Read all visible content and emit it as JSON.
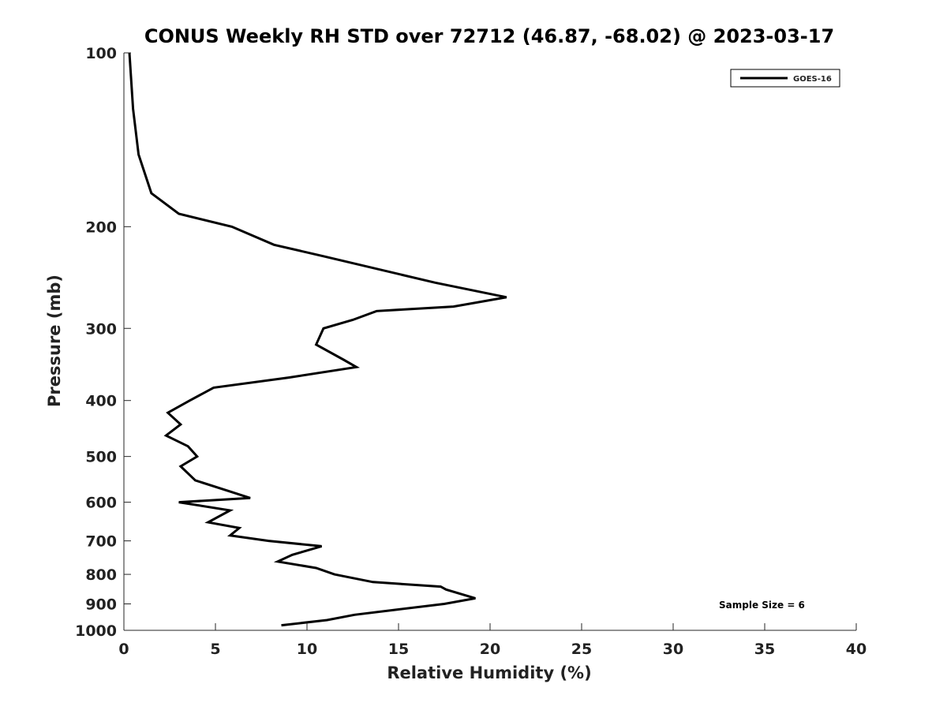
{
  "chart_data": {
    "type": "line",
    "title": "CONUS Weekly RH STD over 72712 (46.87, -68.02) @ 2023-03-17",
    "xlabel": "Relative Humidity (%)",
    "ylabel": "Pressure (mb)",
    "xlim": [
      0,
      40
    ],
    "ylim": [
      100,
      1000
    ],
    "y_scale": "log",
    "y_reversed": true,
    "x_ticks": [
      "0",
      "5",
      "10",
      "15",
      "20",
      "25",
      "30",
      "35",
      "40"
    ],
    "y_ticks": [
      "100",
      "200",
      "300",
      "400",
      "500",
      "600",
      "700",
      "800",
      "900",
      "1000"
    ],
    "grid": false,
    "legend_position": "top-right",
    "annotation": "Sample Size = 6",
    "series": [
      {
        "name": "GOES-16",
        "color": "#000000",
        "points": [
          [
            0.3,
            100
          ],
          [
            0.5,
            125
          ],
          [
            0.8,
            150
          ],
          [
            1.5,
            175
          ],
          [
            3.0,
            190
          ],
          [
            5.9,
            200
          ],
          [
            8.2,
            215
          ],
          [
            10.9,
            225
          ],
          [
            17.0,
            250
          ],
          [
            20.9,
            265
          ],
          [
            18.0,
            275
          ],
          [
            13.8,
            280
          ],
          [
            12.5,
            290
          ],
          [
            10.9,
            300
          ],
          [
            10.5,
            320
          ],
          [
            12.0,
            340
          ],
          [
            12.7,
            350
          ],
          [
            9.0,
            365
          ],
          [
            4.9,
            380
          ],
          [
            3.6,
            400
          ],
          [
            2.4,
            420
          ],
          [
            3.1,
            440
          ],
          [
            2.3,
            460
          ],
          [
            3.5,
            480
          ],
          [
            4.0,
            500
          ],
          [
            3.1,
            520
          ],
          [
            3.9,
            550
          ],
          [
            5.8,
            575
          ],
          [
            6.9,
            590
          ],
          [
            3.0,
            600
          ],
          [
            5.8,
            620
          ],
          [
            4.6,
            650
          ],
          [
            6.3,
            665
          ],
          [
            5.8,
            685
          ],
          [
            7.9,
            700
          ],
          [
            10.8,
            715
          ],
          [
            9.2,
            740
          ],
          [
            8.4,
            760
          ],
          [
            10.5,
            780
          ],
          [
            11.5,
            800
          ],
          [
            13.6,
            825
          ],
          [
            17.3,
            840
          ],
          [
            17.6,
            850
          ],
          [
            19.2,
            880
          ],
          [
            17.5,
            900
          ],
          [
            15.0,
            920
          ],
          [
            12.6,
            940
          ],
          [
            11.1,
            960
          ],
          [
            8.6,
            980
          ]
        ]
      }
    ]
  }
}
